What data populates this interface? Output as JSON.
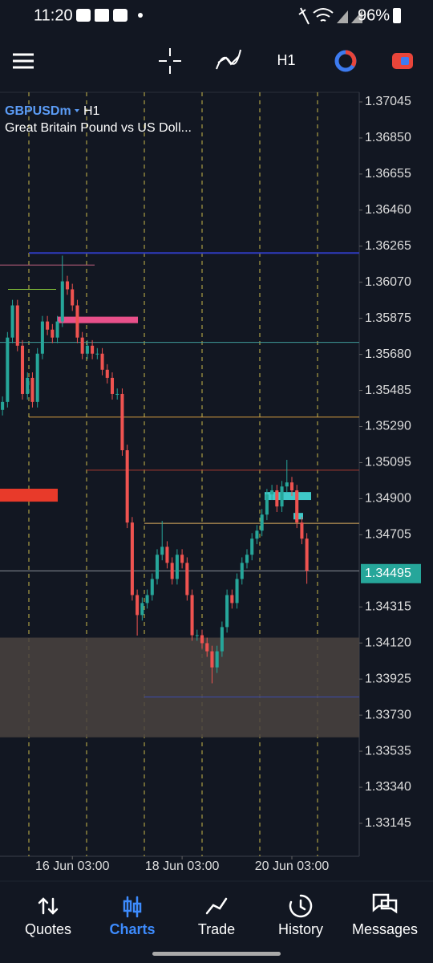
{
  "status_bar": {
    "time": "11:20",
    "battery": "96%"
  },
  "toolbar": {
    "timeframe": "H1"
  },
  "chart_data": {
    "type": "candlestick",
    "symbol": "GBPUSDm",
    "timeframe": "H1",
    "description": "Great Britain Pound vs US Doll...",
    "up_color": "#26a69a",
    "down_color": "#ef5350",
    "open": [
      1.3538,
      1.35423,
      1.35771,
      1.35945,
      1.35727,
      1.35466,
      1.35553,
      1.35423,
      1.35684,
      1.35858,
      1.35814,
      1.35771,
      1.35858,
      1.36075,
      1.36032,
      1.35945,
      1.35771,
      1.35684,
      1.35727,
      1.35684,
      1.35684,
      1.35597,
      1.35553,
      1.35466,
      1.35466,
      1.35162,
      1.34771,
      1.34379,
      1.34271,
      1.34336,
      1.34379,
      1.34466,
      1.34597,
      1.3464,
      1.34553,
      1.34466,
      1.34597,
      1.34553,
      1.34379,
      1.34162,
      1.34162,
      1.34119,
      1.34075,
      1.33988,
      1.34075,
      1.34206,
      1.34379,
      1.34336,
      1.34466,
      1.34553,
      1.34597,
      1.34684,
      1.34727,
      1.34814,
      1.34923,
      1.34945,
      1.34858,
      1.34966,
      1.34988,
      1.34945,
      1.34771,
      1.34684
    ],
    "high": [
      1.35453,
      1.35801,
      1.35975,
      1.35975,
      1.35757,
      1.35583,
      1.35583,
      1.35714,
      1.35888,
      1.35888,
      1.35844,
      1.35888,
      1.36214,
      1.36105,
      1.36062,
      1.35975,
      1.35801,
      1.35757,
      1.35757,
      1.35714,
      1.35714,
      1.35627,
      1.35583,
      1.35496,
      1.35496,
      1.35192,
      1.34801,
      1.34409,
      1.34366,
      1.34409,
      1.34496,
      1.34627,
      1.3478,
      1.3467,
      1.34583,
      1.34627,
      1.34627,
      1.34583,
      1.34409,
      1.34192,
      1.34192,
      1.34149,
      1.34105,
      1.34105,
      1.34236,
      1.34409,
      1.34409,
      1.34496,
      1.34583,
      1.34627,
      1.34714,
      1.34757,
      1.34844,
      1.34953,
      1.34975,
      1.34975,
      1.34996,
      1.3511,
      1.35018,
      1.34975,
      1.34801,
      1.34714
    ],
    "low": [
      1.3535,
      1.35393,
      1.35741,
      1.35697,
      1.35436,
      1.35436,
      1.35393,
      1.35393,
      1.35654,
      1.35784,
      1.35741,
      1.35741,
      1.35828,
      1.36002,
      1.35915,
      1.35741,
      1.35654,
      1.35654,
      1.35654,
      1.35654,
      1.35567,
      1.35523,
      1.35436,
      1.35436,
      1.35132,
      1.34741,
      1.34349,
      1.3416,
      1.34241,
      1.34306,
      1.34349,
      1.34436,
      1.34567,
      1.34523,
      1.34436,
      1.34436,
      1.34523,
      1.34349,
      1.34132,
      1.34132,
      1.34089,
      1.34045,
      1.33902,
      1.33958,
      1.34045,
      1.34176,
      1.34306,
      1.34306,
      1.34436,
      1.34523,
      1.34567,
      1.34654,
      1.34697,
      1.34784,
      1.34893,
      1.34828,
      1.34828,
      1.34936,
      1.34915,
      1.34741,
      1.34654,
      1.3444
    ],
    "close": [
      1.35423,
      1.35771,
      1.35945,
      1.35727,
      1.35466,
      1.35553,
      1.35423,
      1.35684,
      1.35858,
      1.35814,
      1.35771,
      1.35858,
      1.36075,
      1.36032,
      1.35945,
      1.35771,
      1.35684,
      1.35727,
      1.35684,
      1.35684,
      1.35597,
      1.35553,
      1.35466,
      1.35466,
      1.35162,
      1.34771,
      1.34379,
      1.34271,
      1.34336,
      1.34379,
      1.34466,
      1.34597,
      1.3464,
      1.34553,
      1.34466,
      1.34597,
      1.34553,
      1.34379,
      1.34162,
      1.34162,
      1.34119,
      1.34075,
      1.33988,
      1.34075,
      1.34206,
      1.34379,
      1.34336,
      1.34466,
      1.34553,
      1.34597,
      1.34684,
      1.34727,
      1.34814,
      1.34923,
      1.34945,
      1.34858,
      1.34966,
      1.34988,
      1.34945,
      1.34771,
      1.34684,
      1.3451
    ],
    "xlim": [
      -0.5,
      71.5
    ],
    "xticks": [
      {
        "value": 14,
        "label": "16 Jun 03:00"
      },
      {
        "value": 36,
        "label": "18 Jun 03:00"
      },
      {
        "value": 58,
        "label": "20 Jun 03:00"
      }
    ],
    "ylim": [
      1.37097,
      1.32967
    ],
    "yticks": [
      1.37045,
      {
        "value": 1.3685,
        "label": "1.36850"
      },
      1.36655,
      {
        "value": 1.3646,
        "label": "1.36460"
      },
      1.36265,
      {
        "value": 1.3607,
        "label": "1.36070"
      },
      1.35875,
      {
        "value": 1.3568,
        "label": "1.35680"
      },
      1.35485,
      {
        "value": 1.3529,
        "label": "1.35290"
      },
      1.35095,
      {
        "value": 1.349,
        "label": "1.34900"
      },
      1.34705,
      1.34315,
      {
        "value": 1.3412,
        "label": "1.34120"
      },
      1.33925,
      {
        "value": 1.3373,
        "label": "1.33730"
      },
      1.33535,
      {
        "value": 1.3334,
        "label": "1.33340"
      },
      1.33145
    ],
    "levels": [
      {
        "value": 1.36228,
        "color": "#2f3bbf"
      },
      {
        "value": 1.36163,
        "color": "#c06080"
      },
      {
        "value": 1.36032,
        "color": "#8fd33b"
      },
      {
        "value": 1.35745,
        "color": "#3f9a9a"
      },
      {
        "value": 1.35341,
        "color": "#d9a040"
      },
      {
        "value": 1.35054,
        "color": "#a83a30"
      },
      {
        "value": 1.34767,
        "color": "#e0b060"
      },
      {
        "value": 1.3451,
        "color": "#8a8f98"
      },
      {
        "value": 1.33828,
        "color": "#3a4ab0"
      }
    ],
    "zones": [
      {
        "top": 1.35884,
        "bottom": 1.35849,
        "color": "#e8508a"
      },
      {
        "top": 1.34954,
        "bottom": 1.34884,
        "color": "#e83a2a"
      },
      {
        "top": 1.34936,
        "bottom": 1.34893,
        "color": "#3fc8c8"
      },
      {
        "top": 1.34823,
        "bottom": 1.34788,
        "color": "#3fc8c8"
      },
      {
        "top": 1.34149,
        "bottom": 1.3361,
        "color": "#4a433f"
      }
    ],
    "current_price": 1.34495,
    "current_color": "#26a69a"
  },
  "nav": {
    "items": [
      "Quotes",
      "Charts",
      "Trade",
      "History",
      "Messages"
    ],
    "active": 1
  }
}
